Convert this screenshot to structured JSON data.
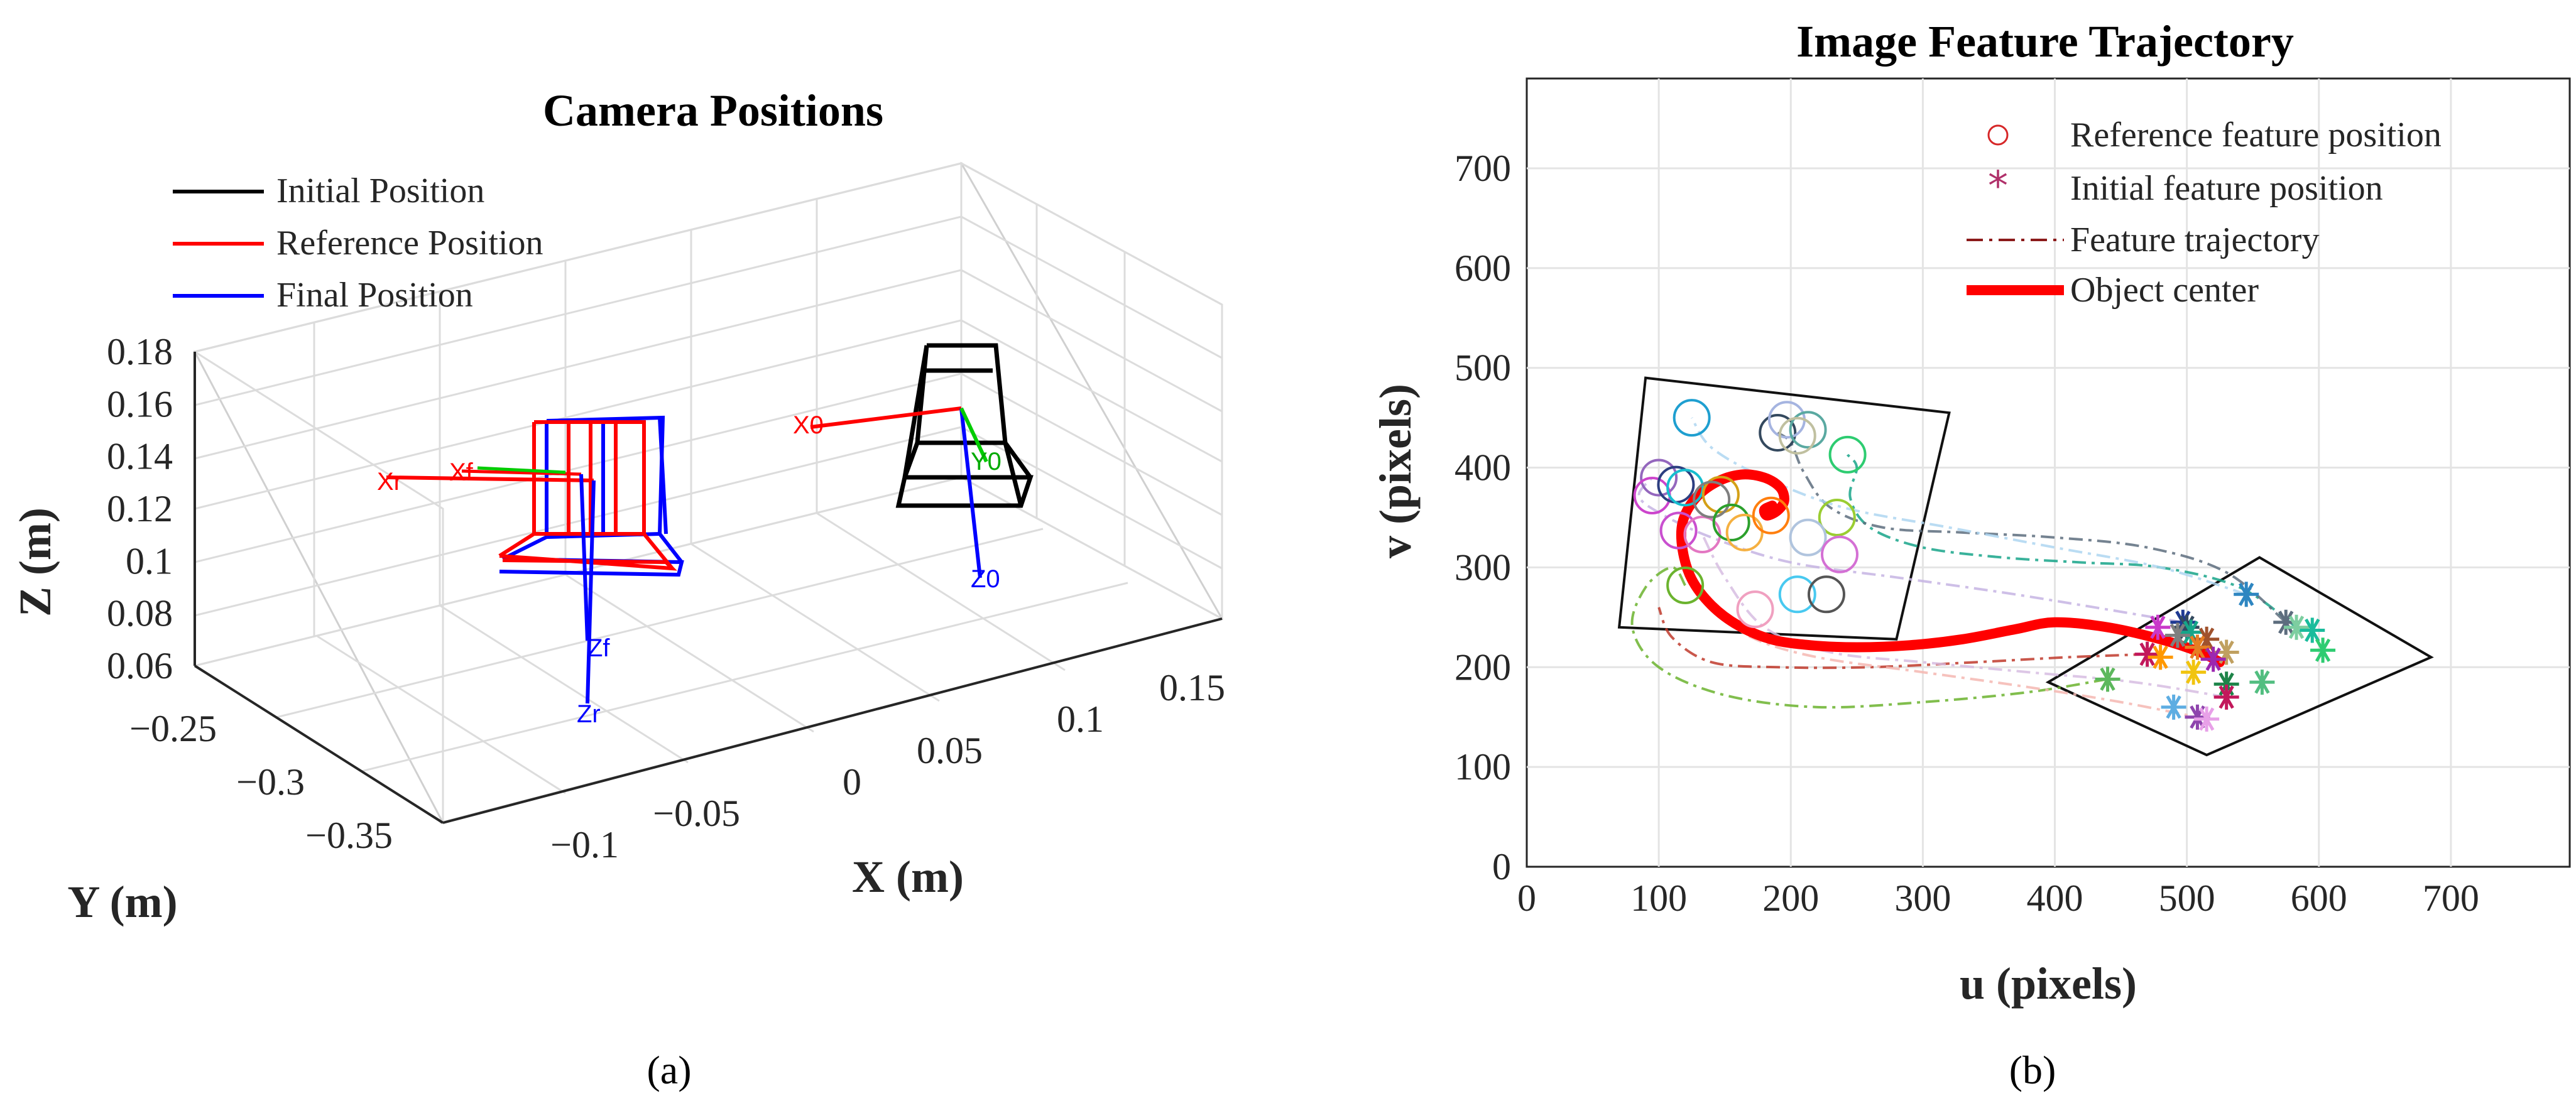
{
  "chart_data": [
    {
      "type": "3d-line",
      "panel": "(a)",
      "title": "Camera Positions",
      "xlabel": "X (m)",
      "ylabel": "Y (m)",
      "zlabel": "Z (m)",
      "x_ticks": [
        "−0.1",
        "−0.05",
        "0",
        "0.05",
        "0.1",
        "0.15"
      ],
      "y_ticks": [
        "−0.25",
        "−0.3",
        "−0.35"
      ],
      "z_ticks": [
        "0.18",
        "0.16",
        "0.14",
        "0.12",
        "0.1",
        "0.08",
        "0.06"
      ],
      "xlim": [
        -0.12,
        0.17
      ],
      "ylim": [
        -0.38,
        -0.22
      ],
      "zlim": [
        0.06,
        0.18
      ],
      "grid": true,
      "legend_position": "top-left",
      "legend": [
        {
          "label": "Initial Position",
          "color": "#000000"
        },
        {
          "label": "Reference Position",
          "color": "#ff0000"
        },
        {
          "label": "Final Position",
          "color": "#0000ff"
        }
      ],
      "frame_labels": {
        "initial": {
          "x": "X0",
          "y": "Y0",
          "z": "Z0"
        },
        "reference": {
          "x": "Xr",
          "z": "Zr"
        },
        "final": {
          "x": "Xf",
          "z": "Zf"
        }
      }
    },
    {
      "type": "scatter-line",
      "panel": "(b)",
      "title": "Image Feature Trajectory",
      "xlabel": "u (pixels)",
      "ylabel": "v (pixels)",
      "xlim": [
        0,
        790
      ],
      "ylim": [
        0,
        790
      ],
      "x_ticks": [
        0,
        100,
        200,
        300,
        400,
        500,
        600,
        700
      ],
      "y_ticks": [
        0,
        100,
        200,
        300,
        400,
        500,
        600,
        700
      ],
      "grid": true,
      "legend_position": "top-right",
      "legend": [
        {
          "label": "Reference feature position",
          "marker": "circle",
          "color": "#d62728"
        },
        {
          "label": "Initial feature position",
          "marker": "star",
          "color": "#b0306a"
        },
        {
          "label": "Feature trajectory",
          "style": "dash-dot",
          "color": "#8b1a1a"
        },
        {
          "label": "Object center",
          "style": "thick-line",
          "color": "#ff0000"
        }
      ],
      "reference_region": [
        [
          90,
          490
        ],
        [
          320,
          455
        ],
        [
          280,
          228
        ],
        [
          70,
          240
        ]
      ],
      "initial_region": [
        [
          555,
          310
        ],
        [
          685,
          210
        ],
        [
          515,
          112
        ],
        [
          395,
          185
        ]
      ],
      "reference_features": [
        {
          "u": 125,
          "v": 450,
          "color": "#1f9fd0"
        },
        {
          "u": 100,
          "v": 390,
          "color": "#9467bd"
        },
        {
          "u": 95,
          "v": 372,
          "color": "#cc44cc"
        },
        {
          "u": 113,
          "v": 383,
          "color": "#2c3e80"
        },
        {
          "u": 120,
          "v": 380,
          "color": "#17becf"
        },
        {
          "u": 115,
          "v": 337,
          "color": "#c94fcf"
        },
        {
          "u": 133,
          "v": 333,
          "color": "#e377c2"
        },
        {
          "u": 147,
          "v": 373,
          "color": "#d4a017"
        },
        {
          "u": 140,
          "v": 368,
          "color": "#7f7f7f"
        },
        {
          "u": 155,
          "v": 345,
          "color": "#2ca02c"
        },
        {
          "u": 165,
          "v": 335,
          "color": "#f5b041"
        },
        {
          "u": 185,
          "v": 352,
          "color": "#ff7f0e"
        },
        {
          "u": 190,
          "v": 435,
          "color": "#34495e"
        },
        {
          "u": 197,
          "v": 448,
          "color": "#a5b4e0"
        },
        {
          "u": 213,
          "v": 438,
          "color": "#5aa9a1"
        },
        {
          "u": 205,
          "v": 432,
          "color": "#c0c0a0"
        },
        {
          "u": 243,
          "v": 413,
          "color": "#2ecc71"
        },
        {
          "u": 235,
          "v": 350,
          "color": "#9acd32"
        },
        {
          "u": 213,
          "v": 330,
          "color": "#b0c4de"
        },
        {
          "u": 237,
          "v": 313,
          "color": "#d470d4"
        },
        {
          "u": 205,
          "v": 273,
          "color": "#48c9f0"
        },
        {
          "u": 227,
          "v": 273,
          "color": "#555555"
        },
        {
          "u": 120,
          "v": 282,
          "color": "#6bb32e"
        },
        {
          "u": 173,
          "v": 258,
          "color": "#f0a0c0"
        }
      ],
      "initial_features": [
        {
          "u": 545,
          "v": 273,
          "color": "#2e86c1"
        },
        {
          "u": 497,
          "v": 245,
          "color": "#1f3a93"
        },
        {
          "u": 500,
          "v": 240,
          "color": "#34495e"
        },
        {
          "u": 503,
          "v": 235,
          "color": "#17a589"
        },
        {
          "u": 478,
          "v": 240,
          "color": "#c939c9"
        },
        {
          "u": 493,
          "v": 232,
          "color": "#7f7f7f"
        },
        {
          "u": 515,
          "v": 228,
          "color": "#a0522d"
        },
        {
          "u": 530,
          "v": 215,
          "color": "#c0a060"
        },
        {
          "u": 508,
          "v": 220,
          "color": "#e67e22"
        },
        {
          "u": 505,
          "v": 195,
          "color": "#f1c40f"
        },
        {
          "u": 520,
          "v": 208,
          "color": "#9c27b0"
        },
        {
          "u": 470,
          "v": 213,
          "color": "#c2185b"
        },
        {
          "u": 480,
          "v": 210,
          "color": "#ff9800"
        },
        {
          "u": 575,
          "v": 245,
          "color": "#5d6d7e"
        },
        {
          "u": 583,
          "v": 240,
          "color": "#7dcea0"
        },
        {
          "u": 595,
          "v": 237,
          "color": "#1abc9c"
        },
        {
          "u": 603,
          "v": 217,
          "color": "#2ecc71"
        },
        {
          "u": 440,
          "v": 188,
          "color": "#5cb85c"
        },
        {
          "u": 557,
          "v": 185,
          "color": "#52be80"
        },
        {
          "u": 530,
          "v": 183,
          "color": "#1e8449"
        },
        {
          "u": 530,
          "v": 170,
          "color": "#c2185b"
        },
        {
          "u": 490,
          "v": 160,
          "color": "#5dade2"
        },
        {
          "u": 508,
          "v": 150,
          "color": "#8e44ad"
        },
        {
          "u": 515,
          "v": 148,
          "color": "#e8a0e8"
        }
      ],
      "object_center": {
        "u": [
          525,
          510,
          480,
          440,
          400,
          370,
          330,
          290,
          250,
          215,
          185,
          160,
          140,
          125,
          118,
          118,
          127,
          143,
          162,
          180,
          192,
          195,
          190,
          182,
          180,
          186
        ],
        "v": [
          205,
          215,
          228,
          240,
          245,
          238,
          228,
          222,
          220,
          222,
          228,
          242,
          262,
          288,
          318,
          345,
          368,
          385,
          393,
          390,
          380,
          367,
          357,
          352,
          358,
          362
        ]
      },
      "feature_trajectories": [
        {
          "color": "#6bb32e",
          "u": [
            440,
            380,
            300,
            220,
            150,
            100,
            80,
            90,
            110,
            120
          ],
          "v": [
            188,
            175,
            165,
            160,
            172,
            200,
            240,
            280,
            300,
            282
          ]
        },
        {
          "color": "#c0392b",
          "u": [
            470,
            410,
            340,
            260,
            190,
            140,
            110,
            100
          ],
          "v": [
            213,
            210,
            205,
            200,
            200,
            205,
            230,
            260
          ]
        },
        {
          "color": "#17a589",
          "u": [
            583,
            540,
            480,
            420,
            360,
            300,
            260,
            245,
            250,
            243
          ],
          "v": [
            240,
            280,
            300,
            305,
            310,
            320,
            340,
            370,
            400,
            413
          ]
        },
        {
          "color": "#5d6d7e",
          "u": [
            575,
            530,
            470,
            400,
            330,
            270,
            230,
            210,
            200,
            190
          ],
          "v": [
            245,
            295,
            320,
            330,
            335,
            340,
            360,
            395,
            425,
            435
          ]
        },
        {
          "color": "#c5b4e3",
          "u": [
            497,
            430,
            360,
            280,
            200,
            140,
            100,
            85,
            95
          ],
          "v": [
            245,
            260,
            275,
            290,
            305,
            330,
            355,
            372,
            390
          ]
        },
        {
          "color": "#aed6f1",
          "u": [
            545,
            480,
            400,
            320,
            240,
            180,
            140,
            125
          ],
          "v": [
            273,
            300,
            320,
            340,
            360,
            390,
            420,
            450
          ]
        },
        {
          "color": "#f5b7b1",
          "u": [
            515,
            450,
            380,
            300,
            220,
            170,
            140
          ],
          "v": [
            148,
            165,
            180,
            195,
            210,
            230,
            260
          ]
        },
        {
          "color": "#d7bde2",
          "u": [
            530,
            460,
            380,
            300,
            230,
            180,
            150,
            133
          ],
          "v": [
            170,
            185,
            195,
            205,
            215,
            240,
            290,
            333
          ]
        }
      ]
    }
  ],
  "captions": {
    "a": "(a)",
    "b": "(b)"
  }
}
